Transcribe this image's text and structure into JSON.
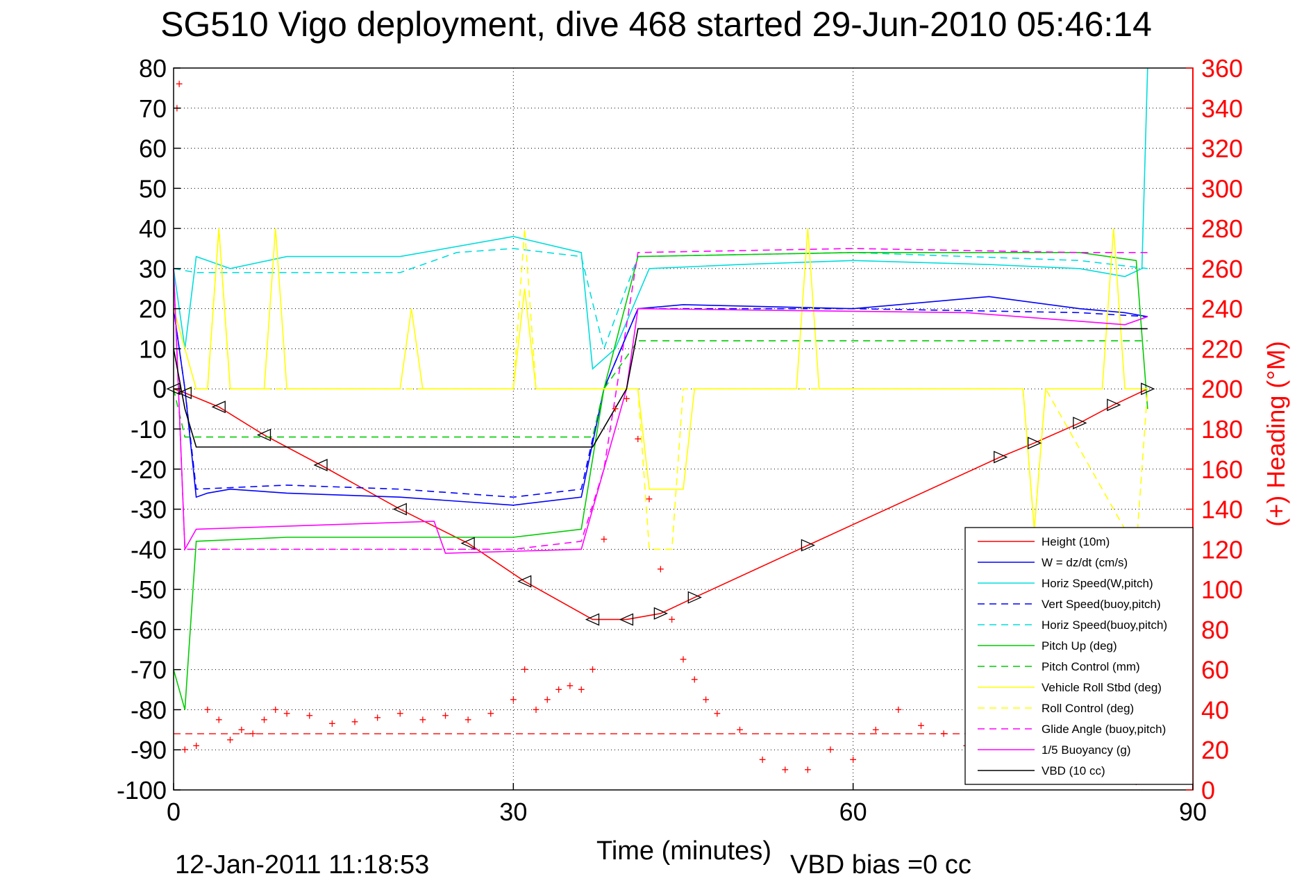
{
  "chart_data": {
    "type": "line",
    "title": "SG510 Vigo deployment, dive 468 started 29-Jun-2010 05:46:14",
    "xlabel": "Time (minutes)",
    "ylabel": "",
    "ylabel_right": "(+) Heading (°M)",
    "xlim": [
      0,
      90
    ],
    "ylim": [
      -100,
      80
    ],
    "ylim_right": [
      0,
      360
    ],
    "xticks": [
      "0",
      "30",
      "60",
      "90"
    ],
    "yticks": [
      "80",
      "70",
      "60",
      "50",
      "40",
      "30",
      "20",
      "10",
      "0",
      "-10",
      "-20",
      "-30",
      "-40",
      "-50",
      "-60",
      "-70",
      "-80",
      "-90",
      "-100"
    ],
    "yticks_right": [
      "360",
      "340",
      "320",
      "300",
      "280",
      "260",
      "240",
      "220",
      "200",
      "180",
      "160",
      "140",
      "120",
      "100",
      "80",
      "60",
      "40",
      "20",
      "0"
    ],
    "grid": true,
    "legend_position": "bottom-right",
    "footer_date": "12-Jan-2011 11:18:53",
    "footer_note": "VBD bias =0 cc",
    "series": [
      {
        "name": "Height (10m)",
        "color": "#ff0000",
        "dash": "solid",
        "x": [
          0,
          1,
          4,
          8,
          13,
          20,
          26,
          31,
          37,
          40,
          43,
          46,
          56,
          73,
          76,
          80,
          83,
          86
        ],
        "y": [
          0,
          -1,
          -4.5,
          -11.5,
          -19,
          -30,
          -38.5,
          -48,
          -57.5,
          -57.5,
          -56,
          -52,
          -39,
          -17,
          -13.5,
          -8.5,
          -4,
          0
        ]
      },
      {
        "name": "W = dz/dt (cm/s)",
        "color": "#0000ff",
        "dash": "solid",
        "x": [
          0,
          1,
          2,
          3,
          5,
          10,
          20,
          30,
          36,
          38,
          41,
          45,
          60,
          72,
          80,
          84,
          86
        ],
        "y": [
          20,
          0,
          -27,
          -26,
          -25,
          -26,
          -27,
          -29,
          -27,
          0,
          20,
          21,
          20,
          23,
          20,
          19,
          18
        ]
      },
      {
        "name": "Horiz Speed(W,pitch)",
        "color": "#00dddd",
        "dash": "solid",
        "x": [
          0,
          1,
          2,
          5,
          10,
          20,
          30,
          36,
          37,
          39,
          42,
          50,
          60,
          72,
          80,
          84,
          85.5,
          86
        ],
        "y": [
          30,
          10,
          33,
          30,
          33,
          33,
          38,
          34,
          5,
          10,
          30,
          31,
          32,
          31,
          30,
          28,
          30,
          80
        ]
      },
      {
        "name": "Vert Speed(buoy,pitch)",
        "color": "#0000ff",
        "dash": "dashed",
        "x": [
          0,
          1,
          2,
          10,
          20,
          30,
          36,
          38,
          41,
          60,
          80,
          86
        ],
        "y": [
          20,
          0,
          -25,
          -24,
          -25,
          -27,
          -25,
          0,
          20,
          20,
          19,
          18
        ]
      },
      {
        "name": "Horiz Speed(buoy,pitch)",
        "color": "#00dddd",
        "dash": "dashed",
        "x": [
          0,
          2,
          10,
          20,
          25,
          30,
          36,
          38,
          41,
          60,
          80,
          86
        ],
        "y": [
          30,
          29,
          29,
          29,
          34,
          35,
          33,
          10,
          33,
          34,
          32,
          30
        ]
      },
      {
        "name": "Pitch Up (deg)",
        "color": "#00cc00",
        "dash": "solid",
        "x": [
          0,
          1,
          2,
          10,
          20,
          30,
          36,
          38,
          41,
          60,
          80,
          85,
          86
        ],
        "y": [
          -70,
          -80,
          -38,
          -37,
          -37,
          -37,
          -35,
          0,
          33,
          34,
          34,
          32,
          -5
        ]
      },
      {
        "name": "Pitch Control (mm)",
        "color": "#00cc00",
        "dash": "dashed",
        "x": [
          0,
          1,
          2,
          37,
          38,
          41,
          86
        ],
        "y": [
          0,
          -12,
          -12,
          -12,
          0,
          12,
          12
        ]
      },
      {
        "name": "Vehicle Roll Stbd (deg)",
        "color": "#ffff00",
        "dash": "solid",
        "x": [
          0,
          2,
          3,
          4,
          5,
          8,
          9,
          10,
          20,
          21,
          22,
          30,
          31,
          32,
          37,
          41,
          42,
          45,
          46,
          55,
          56,
          57,
          75,
          76,
          77,
          82,
          83,
          84,
          86
        ],
        "y": [
          20,
          0,
          0,
          40,
          0,
          0,
          40,
          0,
          0,
          20,
          0,
          0,
          25,
          0,
          0,
          0,
          -25,
          -25,
          0,
          0,
          40,
          0,
          0,
          -35,
          0,
          0,
          40,
          0,
          0
        ]
      },
      {
        "name": "Roll Control (deg)",
        "color": "#ffff00",
        "dash": "dashed",
        "x": [
          0,
          3,
          4,
          5,
          30,
          31,
          32,
          41,
          42,
          44,
          45,
          60,
          75,
          76,
          77,
          85,
          86
        ],
        "y": [
          0,
          0,
          40,
          0,
          0,
          40,
          0,
          0,
          -40,
          -40,
          0,
          0,
          0,
          -35,
          0,
          -40,
          0
        ]
      },
      {
        "name": "Glide Angle (buoy,pitch)",
        "color": "#ff00ff",
        "dash": "dashed",
        "x": [
          0,
          1,
          2,
          10,
          20,
          30,
          36,
          38,
          41,
          60,
          80,
          86
        ],
        "y": [
          30,
          -40,
          -40,
          -40,
          -40,
          -40,
          -38,
          -20,
          34,
          35,
          34,
          34
        ]
      },
      {
        "name": "1/5 Buoyancy (g)",
        "color": "#ff00ff",
        "dash": "solid",
        "x": [
          0,
          1,
          2,
          23,
          24,
          36,
          40,
          41,
          70,
          84,
          86
        ],
        "y": [
          30,
          -40,
          -35,
          -33,
          -41,
          -40,
          0,
          20,
          19,
          16,
          18
        ]
      },
      {
        "name": "VBD (10 cc)",
        "color": "#000000",
        "dash": "solid",
        "x": [
          0,
          1,
          2,
          37,
          40,
          41,
          86
        ],
        "y": [
          10,
          -5,
          -14.5,
          -14.5,
          0,
          15,
          15
        ]
      }
    ],
    "heading": {
      "axis": "right",
      "color": "#ff0000",
      "marker": "+",
      "mean": 28,
      "x": [
        0.3,
        0.5,
        1,
        2,
        3,
        4,
        5,
        6,
        7,
        8,
        9,
        10,
        12,
        14,
        16,
        18,
        20,
        22,
        24,
        26,
        28,
        30,
        31,
        32,
        33,
        34,
        35,
        36,
        37,
        38,
        39,
        40,
        41,
        42,
        43,
        44,
        45,
        46,
        47,
        48,
        50,
        52,
        54,
        56,
        58,
        60,
        62,
        64,
        66,
        68,
        70,
        72,
        74,
        76,
        78,
        80,
        82,
        84,
        85
      ],
      "y": [
        340,
        352,
        20,
        22,
        40,
        35,
        25,
        30,
        28,
        35,
        40,
        38,
        37,
        33,
        34,
        36,
        38,
        35,
        37,
        35,
        38,
        45,
        60,
        40,
        45,
        50,
        52,
        50,
        60,
        125,
        190,
        195,
        175,
        145,
        110,
        85,
        65,
        55,
        45,
        38,
        30,
        15,
        10,
        10,
        20,
        15,
        30,
        40,
        32,
        28,
        22,
        18,
        16,
        15,
        12,
        10,
        8,
        6,
        4
      ]
    }
  }
}
